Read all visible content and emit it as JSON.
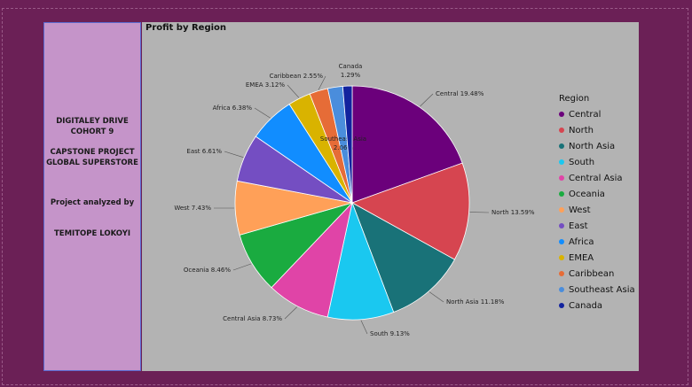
{
  "sidebar": {
    "line1": "DIGITALEY DRIVE",
    "line2": "COHORT 9",
    "line3": "CAPSTONE PROJECT",
    "line4": "GLOBAL SUPERSTORE",
    "line5": "Project analyzed by",
    "line6": "TEMITOPE LOKOYI"
  },
  "chart_data": {
    "type": "pie",
    "title": "Profit by Region",
    "legend_title": "Region",
    "legend_position": "right",
    "slices": [
      {
        "label": "Central",
        "value": 19.48,
        "display": "Central 19.48%",
        "color": "#6b007b"
      },
      {
        "label": "North",
        "value": 13.59,
        "display": "North 13.59%",
        "color": "#d64550"
      },
      {
        "label": "North Asia",
        "value": 11.18,
        "display": "North Asia 11.18%",
        "color": "#197278"
      },
      {
        "label": "South",
        "value": 9.13,
        "display": "South 9.13%",
        "color": "#1ac8f0"
      },
      {
        "label": "Central Asia",
        "value": 8.73,
        "display": "Central Asia 8.73%",
        "color": "#e044a7"
      },
      {
        "label": "Oceania",
        "value": 8.46,
        "display": "Oceania 8.46%",
        "color": "#1aab40"
      },
      {
        "label": "West",
        "value": 7.43,
        "display": "West 7.43%",
        "color": "#ffa058"
      },
      {
        "label": "East",
        "value": 6.61,
        "display": "East 6.61%",
        "color": "#744ec2"
      },
      {
        "label": "Africa",
        "value": 6.38,
        "display": "Africa 6.38%",
        "color": "#118dff"
      },
      {
        "label": "EMEA",
        "value": 3.12,
        "display": "EMEA 3.12%",
        "color": "#d9b300"
      },
      {
        "label": "Caribbean",
        "value": 2.55,
        "display": "Caribbean 2.55%",
        "color": "#e66c37"
      },
      {
        "label": "Southeast Asia",
        "value": 2.06,
        "display": "Southeast Asia 2.06%",
        "color": "#4a8ddc"
      },
      {
        "label": "Canada",
        "value": 1.29,
        "display": "Canada 1.29%",
        "color": "#12239e"
      }
    ]
  }
}
